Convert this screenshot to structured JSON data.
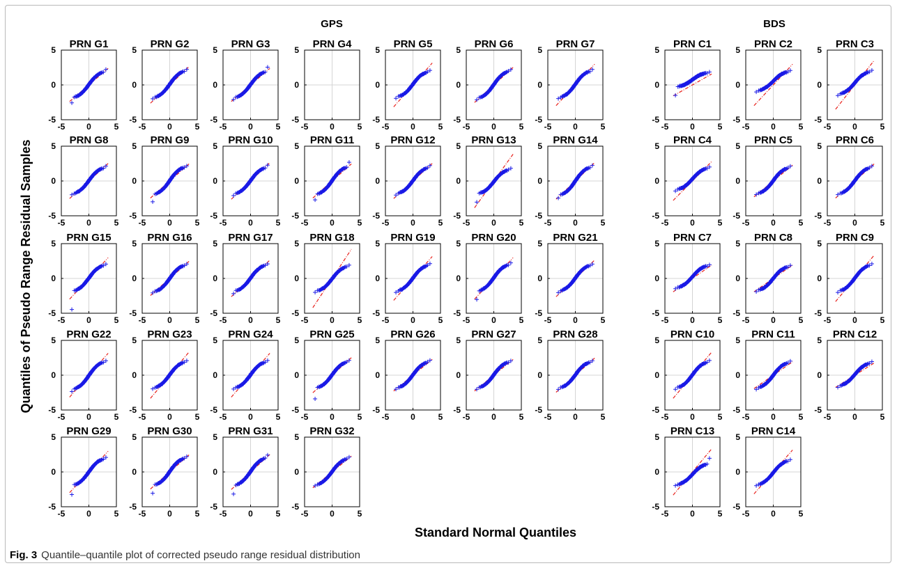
{
  "figure": {
    "group_gps": "GPS",
    "group_bds": "BDS",
    "xlabel": "Standard Normal Quantiles",
    "ylabel": "Quantiles of Pseudo Range Residual Samples",
    "caption_label": "Fig. 3",
    "caption_text": "Quantile–quantile plot of corrected pseudo range residual distribution"
  },
  "colors": {
    "samples": "#1a1ae6",
    "reference": "#e8201a",
    "grid": "#d4d4d4",
    "axes": "#000000"
  },
  "chart_data": {
    "type": "scatter",
    "xlim": [
      -5,
      5
    ],
    "ylim": [
      -5,
      5
    ],
    "xticks": [
      "-5",
      "0",
      "5"
    ],
    "yticks": [
      "5",
      "0",
      "-5"
    ],
    "grid": true,
    "marker": "+",
    "x_range_of_samples": [
      -3.5,
      3.5
    ],
    "panels": [
      {
        "title": "PRN G1",
        "group": "GPS",
        "ref_slope": 0.68,
        "y_low": -1.9,
        "y_high": 2.0,
        "out_low": -2.6,
        "out_high": 2.2
      },
      {
        "title": "PRN G2",
        "group": "GPS",
        "ref_slope": 0.75,
        "y_low": -1.9,
        "y_high": 2.1,
        "out_low": -2.0,
        "out_high": 2.2
      },
      {
        "title": "PRN G3",
        "group": "GPS",
        "ref_slope": 0.68,
        "y_low": -1.9,
        "y_high": 2.0,
        "out_low": -2.1,
        "out_high": 2.6
      },
      {
        "title": "PRN G4",
        "group": "GPS",
        "empty": true
      },
      {
        "title": "PRN G5",
        "group": "GPS",
        "ref_slope": 0.9,
        "y_low": -1.8,
        "y_high": 2.0,
        "out_low": -1.9,
        "out_high": 2.1
      },
      {
        "title": "PRN G6",
        "group": "GPS",
        "ref_slope": 0.72,
        "y_low": -2.0,
        "y_high": 2.1,
        "out_low": -2.1,
        "out_high": 2.2
      },
      {
        "title": "PRN G7",
        "group": "GPS",
        "ref_slope": 0.85,
        "y_low": -1.9,
        "y_high": 2.1,
        "out_low": -2.0,
        "out_high": 2.2
      },
      {
        "title": "PRN G8",
        "group": "GPS",
        "ref_slope": 0.72,
        "y_low": -1.9,
        "y_high": 2.0,
        "out_low": -2.0,
        "out_high": 2.1
      },
      {
        "title": "PRN G9",
        "group": "GPS",
        "ref_slope": 0.7,
        "y_low": -2.0,
        "y_high": 2.1,
        "out_low": -3.0,
        "out_high": 2.2
      },
      {
        "title": "PRN G10",
        "group": "GPS",
        "ref_slope": 0.75,
        "y_low": -1.9,
        "y_high": 2.0,
        "out_low": -2.1,
        "out_high": 2.3
      },
      {
        "title": "PRN G11",
        "group": "GPS",
        "ref_slope": 0.7,
        "y_low": -2.0,
        "y_high": 2.1,
        "out_low": -2.7,
        "out_high": 2.7
      },
      {
        "title": "PRN G12",
        "group": "GPS",
        "ref_slope": 0.72,
        "y_low": -1.9,
        "y_high": 2.0,
        "out_low": -2.0,
        "out_high": 2.2
      },
      {
        "title": "PRN G13",
        "group": "GPS",
        "ref_slope": 1.1,
        "y_low": -1.9,
        "y_high": 1.7,
        "out_low": -3.0,
        "out_high": 1.8
      },
      {
        "title": "PRN G14",
        "group": "GPS",
        "ref_slope": 0.75,
        "y_low": -2.1,
        "y_high": 2.1,
        "out_low": -2.4,
        "out_high": 2.2
      },
      {
        "title": "PRN G15",
        "group": "GPS",
        "ref_slope": 0.85,
        "y_low": -1.9,
        "y_high": 2.0,
        "out_low": -4.5,
        "out_high": 2.1
      },
      {
        "title": "PRN G16",
        "group": "GPS",
        "ref_slope": 0.7,
        "y_low": -2.0,
        "y_high": 2.0,
        "out_low": -2.1,
        "out_high": 2.1
      },
      {
        "title": "PRN G17",
        "group": "GPS",
        "ref_slope": 0.75,
        "y_low": -1.9,
        "y_high": 2.0,
        "out_low": -2.2,
        "out_high": 2.1
      },
      {
        "title": "PRN G18",
        "group": "GPS",
        "ref_slope": 1.2,
        "y_low": -1.9,
        "y_high": 1.8,
        "out_low": -2.0,
        "out_high": 1.9
      },
      {
        "title": "PRN G19",
        "group": "GPS",
        "ref_slope": 0.9,
        "y_low": -1.9,
        "y_high": 2.0,
        "out_low": -2.0,
        "out_high": 2.1
      },
      {
        "title": "PRN G20",
        "group": "GPS",
        "ref_slope": 0.85,
        "y_low": -1.9,
        "y_high": 2.1,
        "out_low": -3.0,
        "out_high": 2.2
      },
      {
        "title": "PRN G21",
        "group": "GPS",
        "ref_slope": 0.75,
        "y_low": -1.9,
        "y_high": 2.0,
        "out_low": -2.0,
        "out_high": 2.1
      },
      {
        "title": "PRN G22",
        "group": "GPS",
        "ref_slope": 0.9,
        "y_low": -2.1,
        "y_high": 2.0,
        "out_low": -2.4,
        "out_high": 2.1
      },
      {
        "title": "PRN G23",
        "group": "GPS",
        "ref_slope": 0.95,
        "y_low": -1.9,
        "y_high": 2.0,
        "out_low": -2.0,
        "out_high": 2.1
      },
      {
        "title": "PRN G24",
        "group": "GPS",
        "ref_slope": 0.9,
        "y_low": -1.9,
        "y_high": 2.0,
        "out_low": -2.0,
        "out_high": 2.1
      },
      {
        "title": "PRN G25",
        "group": "GPS",
        "ref_slope": 0.72,
        "y_low": -1.9,
        "y_high": 2.0,
        "out_low": -3.4,
        "out_high": 2.1
      },
      {
        "title": "PRN G26",
        "group": "GPS",
        "ref_slope": 0.65,
        "y_low": -1.9,
        "y_high": 2.0,
        "out_low": -2.0,
        "out_high": 2.1
      },
      {
        "title": "PRN G27",
        "group": "GPS",
        "ref_slope": 0.65,
        "y_low": -1.9,
        "y_high": 2.0,
        "out_low": -2.0,
        "out_high": 2.1
      },
      {
        "title": "PRN G28",
        "group": "GPS",
        "ref_slope": 0.7,
        "y_low": -1.9,
        "y_high": 2.0,
        "out_low": -2.0,
        "out_high": 2.1
      },
      {
        "title": "PRN G29",
        "group": "GPS",
        "ref_slope": 0.85,
        "y_low": -2.0,
        "y_high": 2.0,
        "out_low": -3.2,
        "out_high": 2.1
      },
      {
        "title": "PRN G30",
        "group": "GPS",
        "ref_slope": 0.7,
        "y_low": -2.0,
        "y_high": 2.1,
        "out_low": -3.1,
        "out_high": 2.2
      },
      {
        "title": "PRN G31",
        "group": "GPS",
        "ref_slope": 0.72,
        "y_low": -2.0,
        "y_high": 2.1,
        "out_low": -3.2,
        "out_high": 2.4
      },
      {
        "title": "PRN G32",
        "group": "GPS",
        "ref_slope": 0.65,
        "y_low": -1.9,
        "y_high": 2.0,
        "out_low": -2.0,
        "out_high": 2.1
      },
      {
        "title": "PRN C1",
        "group": "BDS",
        "ref_slope": 0.45,
        "y_low": -0.3,
        "y_high": 1.8,
        "out_low": -1.5,
        "out_high": 1.9
      },
      {
        "title": "PRN C2",
        "group": "BDS",
        "ref_slope": 0.85,
        "y_low": -0.9,
        "y_high": 2.0,
        "out_low": -1.0,
        "out_high": 2.1
      },
      {
        "title": "PRN C3",
        "group": "BDS",
        "ref_slope": 1.0,
        "y_low": -1.4,
        "y_high": 2.0,
        "out_low": -1.5,
        "out_high": 2.1
      },
      {
        "title": "PRN C4",
        "group": "BDS",
        "ref_slope": 0.8,
        "y_low": -1.3,
        "y_high": 1.9,
        "out_low": -1.4,
        "out_high": 2.0
      },
      {
        "title": "PRN C5",
        "group": "BDS",
        "ref_slope": 0.65,
        "y_low": -1.9,
        "y_high": 2.0,
        "out_low": -2.0,
        "out_high": 2.1
      },
      {
        "title": "PRN C6",
        "group": "BDS",
        "ref_slope": 0.7,
        "y_low": -1.9,
        "y_high": 2.0,
        "out_low": -2.0,
        "out_high": 2.1
      },
      {
        "title": "PRN C7",
        "group": "BDS",
        "ref_slope": 0.55,
        "y_low": -1.4,
        "y_high": 1.9,
        "out_low": -1.5,
        "out_high": 2.0
      },
      {
        "title": "PRN C8",
        "group": "BDS",
        "ref_slope": 0.55,
        "y_low": -1.8,
        "y_high": 1.8,
        "out_low": -1.9,
        "out_high": 1.9
      },
      {
        "title": "PRN C9",
        "group": "BDS",
        "ref_slope": 0.95,
        "y_low": -1.9,
        "y_high": 2.0,
        "out_low": -2.0,
        "out_high": 2.1
      },
      {
        "title": "PRN C10",
        "group": "BDS",
        "ref_slope": 0.95,
        "y_low": -1.9,
        "y_high": 2.0,
        "out_low": -2.0,
        "out_high": 2.1
      },
      {
        "title": "PRN C11",
        "group": "BDS",
        "ref_slope": 0.55,
        "y_low": -1.9,
        "y_high": 1.9,
        "out_low": -2.0,
        "out_high": 2.0
      },
      {
        "title": "PRN C12",
        "group": "BDS",
        "ref_slope": 0.5,
        "y_low": -1.6,
        "y_high": 1.8,
        "out_low": -1.7,
        "out_high": 1.9
      },
      {
        "title": "PRN C13",
        "group": "BDS",
        "ref_slope": 0.95,
        "y_low": -1.9,
        "y_high": 1.2,
        "out_low": -2.0,
        "out_high": 2.0
      },
      {
        "title": "PRN C14",
        "group": "BDS",
        "ref_slope": 0.9,
        "y_low": -1.9,
        "y_high": 1.7,
        "out_low": -2.0,
        "out_high": 1.8
      }
    ]
  }
}
